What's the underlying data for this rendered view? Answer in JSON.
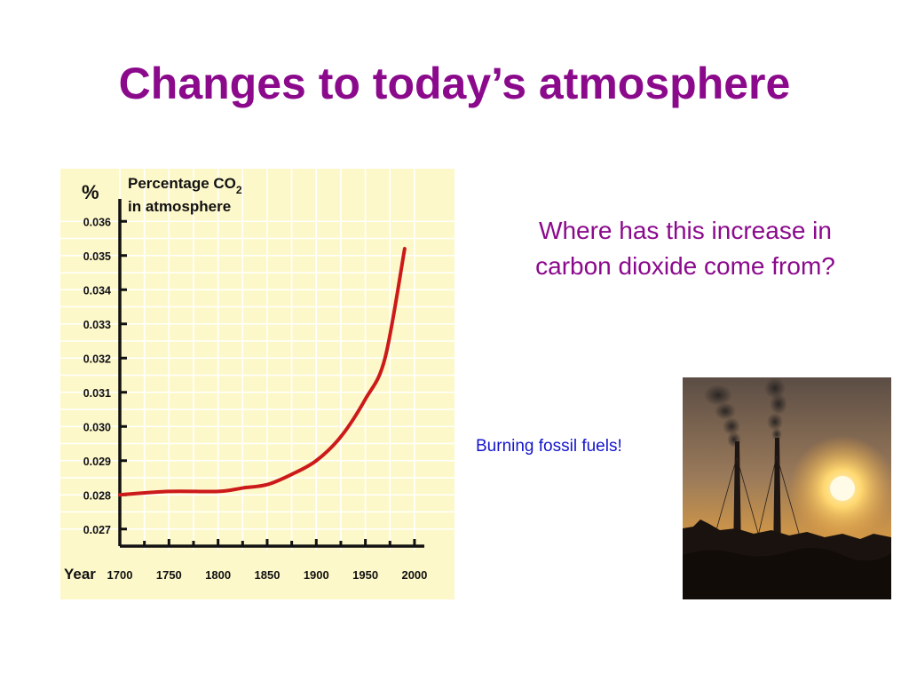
{
  "slide": {
    "title": "Changes to today’s atmosphere",
    "question": "Where has this increase in carbon dioxide come from?",
    "answer": "Burning fossil fuels!"
  },
  "colors": {
    "title": "#8B0A8C",
    "question": "#8B0A8C",
    "answer": "#1414CC",
    "chart_background": "#FDF8C9",
    "grid": "#FFFFFF",
    "axis": "#111111",
    "curve": "#CC1A1A"
  },
  "photo": {
    "icon": "factory-chimneys-sunset-photo"
  },
  "chart_data": {
    "type": "line",
    "unit_label": "%",
    "title_line1": "Percentage CO",
    "title_subscript": "2",
    "title_line2": "in atmosphere",
    "xlabel": "Year",
    "ylabel": "%",
    "x_ticks": [
      1700,
      1750,
      1800,
      1850,
      1900,
      1950,
      2000
    ],
    "y_ticks": [
      "0.027",
      "0.028",
      "0.029",
      "0.030",
      "0.031",
      "0.032",
      "0.033",
      "0.034",
      "0.035",
      "0.036"
    ],
    "xlim": [
      1700,
      2010
    ],
    "ylim": [
      0.0265,
      0.0365
    ],
    "grid": true,
    "series": [
      {
        "x": [
          1700,
          1750,
          1800,
          1825,
          1850,
          1875,
          1900,
          1925,
          1950,
          1970,
          1990
        ],
        "y": [
          0.028,
          0.0281,
          0.0281,
          0.0282,
          0.0283,
          0.0286,
          0.029,
          0.0297,
          0.0308,
          0.032,
          0.0352
        ]
      }
    ]
  }
}
